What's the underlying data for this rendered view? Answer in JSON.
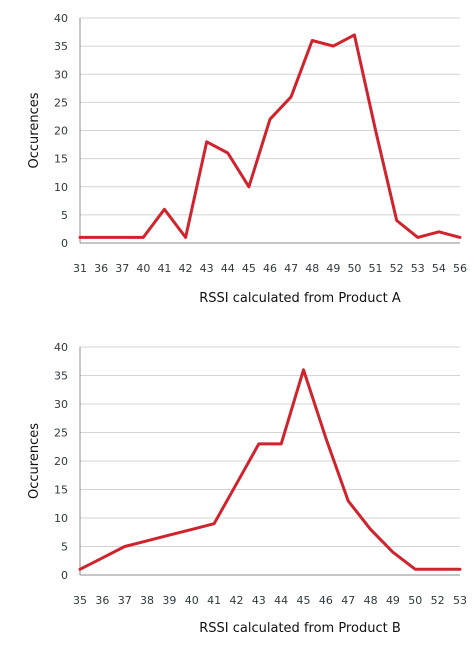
{
  "chart_data": [
    {
      "type": "line",
      "title": "",
      "xlabel": "RSSI calculated from Product A",
      "ylabel": "Occurences",
      "ylim": [
        0,
        40
      ],
      "yticks": [
        0,
        5,
        10,
        15,
        20,
        25,
        30,
        35,
        40
      ],
      "grid": true,
      "categories": [
        "31",
        "36",
        "37",
        "40",
        "41",
        "42",
        "43",
        "44",
        "45",
        "46",
        "47",
        "48",
        "49",
        "50",
        "51",
        "52",
        "53",
        "54",
        "56"
      ],
      "values": [
        1,
        1,
        1,
        1,
        6,
        1,
        18,
        16,
        10,
        22,
        26,
        36,
        35,
        37,
        20,
        4,
        1,
        2,
        1
      ],
      "color": "#d0232d"
    },
    {
      "type": "line",
      "title": "",
      "xlabel": "RSSI calculated from Product B",
      "ylabel": "Occurences",
      "ylim": [
        0,
        40
      ],
      "yticks": [
        0,
        5,
        10,
        15,
        20,
        25,
        30,
        35,
        40
      ],
      "grid": true,
      "categories": [
        "35",
        "36",
        "37",
        "38",
        "39",
        "40",
        "41",
        "42",
        "43",
        "44",
        "45",
        "46",
        "47",
        "48",
        "49",
        "50",
        "52",
        "53"
      ],
      "values": [
        1,
        3,
        5,
        6,
        7,
        8,
        9,
        16,
        23,
        23,
        36,
        24,
        13,
        8,
        4,
        1,
        1,
        1
      ],
      "color": "#d0232d"
    }
  ]
}
